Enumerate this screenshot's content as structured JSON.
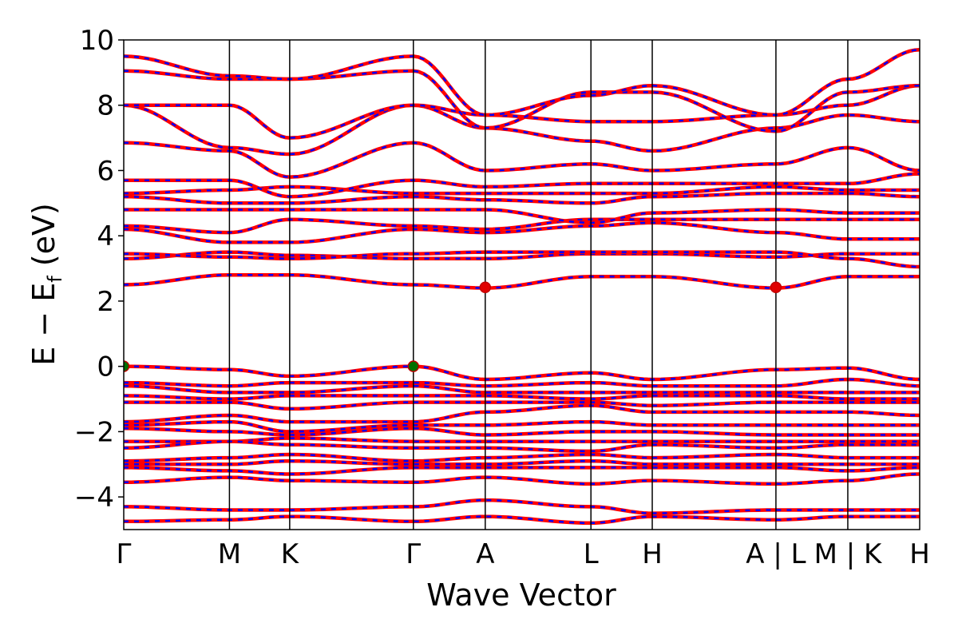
{
  "chart_data": {
    "type": "line",
    "title": "",
    "xlabel": "Wave Vector",
    "ylabel_main": "E − E",
    "ylabel_sub": "f",
    "ylabel_unit": " (eV)",
    "ylim": [
      -5,
      10
    ],
    "yticks": [
      {
        "value": 10,
        "label": "10"
      },
      {
        "value": 8,
        "label": "8"
      },
      {
        "value": 6,
        "label": "6"
      },
      {
        "value": 4,
        "label": "4"
      },
      {
        "value": 2,
        "label": "2"
      },
      {
        "value": 0,
        "label": "0"
      },
      {
        "value": -2,
        "label": "−2"
      },
      {
        "value": -4,
        "label": "−4"
      }
    ],
    "path_length": 7.53,
    "kpoints": [
      {
        "label": "Γ",
        "x": 0.0
      },
      {
        "label": "M",
        "x": 1.0
      },
      {
        "label": "K",
        "x": 1.57
      },
      {
        "label": "Γ",
        "x": 2.74
      },
      {
        "label": "A",
        "x": 3.42
      },
      {
        "label": "L",
        "x": 4.42
      },
      {
        "label": "H",
        "x": 5.0
      },
      {
        "label": "A | L",
        "x": 6.17
      },
      {
        "label": "M | K",
        "x": 6.85
      },
      {
        "label": "H",
        "x": 7.53
      }
    ],
    "series_colors": {
      "red": "#ff0000",
      "blue": "#0000ff"
    },
    "conduction_bands": [
      [
        2.5,
        2.8,
        2.8,
        2.5,
        2.4,
        2.75,
        2.75,
        2.4,
        2.75,
        2.75
      ],
      [
        3.3,
        3.5,
        3.4,
        3.3,
        3.3,
        3.45,
        3.45,
        3.35,
        3.45,
        3.45
      ],
      [
        3.45,
        3.35,
        3.3,
        3.45,
        3.5,
        3.5,
        3.5,
        3.5,
        3.3,
        3.05
      ],
      [
        4.2,
        3.8,
        3.8,
        4.2,
        4.1,
        4.3,
        4.4,
        4.1,
        3.9,
        3.9
      ],
      [
        4.3,
        4.1,
        4.5,
        4.3,
        4.2,
        4.5,
        4.5,
        4.5,
        4.5,
        4.5
      ],
      [
        4.8,
        4.8,
        4.8,
        4.8,
        4.8,
        4.4,
        4.7,
        4.8,
        4.7,
        4.7
      ],
      [
        5.2,
        5.0,
        5.0,
        5.2,
        5.1,
        5.0,
        5.2,
        5.3,
        5.3,
        5.2
      ],
      [
        5.3,
        5.4,
        5.5,
        5.3,
        5.3,
        5.3,
        5.3,
        5.5,
        5.4,
        5.4
      ],
      [
        5.7,
        5.7,
        5.2,
        5.7,
        5.5,
        5.6,
        5.6,
        5.6,
        5.6,
        5.9
      ],
      [
        6.85,
        6.6,
        5.8,
        6.85,
        6.0,
        6.2,
        6.0,
        6.2,
        6.7,
        6.0
      ],
      [
        8.0,
        6.7,
        6.5,
        8.0,
        7.3,
        6.9,
        6.6,
        7.3,
        7.7,
        7.5
      ],
      [
        8.0,
        8.0,
        7.0,
        8.0,
        7.7,
        7.5,
        7.5,
        7.7,
        8.0,
        8.6
      ],
      [
        9.05,
        8.8,
        8.8,
        9.05,
        7.3,
        8.4,
        8.4,
        7.2,
        8.4,
        8.6
      ],
      [
        9.5,
        8.9,
        8.8,
        9.5,
        7.7,
        8.3,
        8.6,
        7.7,
        8.8,
        9.7
      ]
    ],
    "valence_bands": [
      [
        0.0,
        -0.1,
        -0.3,
        0.0,
        -0.4,
        -0.2,
        -0.4,
        -0.1,
        -0.05,
        -0.4
      ],
      [
        -0.5,
        -0.6,
        -0.5,
        -0.5,
        -0.6,
        -0.5,
        -0.6,
        -0.6,
        -0.4,
        -0.6
      ],
      [
        -0.6,
        -0.8,
        -0.8,
        -0.6,
        -0.8,
        -0.8,
        -0.8,
        -0.8,
        -0.8,
        -0.8
      ],
      [
        -0.9,
        -1.0,
        -0.9,
        -0.9,
        -0.9,
        -1.0,
        -0.9,
        -0.9,
        -1.0,
        -1.0
      ],
      [
        -1.1,
        -1.1,
        -1.3,
        -1.1,
        -1.1,
        -1.1,
        -1.2,
        -1.1,
        -1.1,
        -1.1
      ],
      [
        -1.7,
        -1.5,
        -1.7,
        -1.7,
        -1.4,
        -1.2,
        -1.4,
        -1.4,
        -1.4,
        -1.5
      ],
      [
        -1.8,
        -1.7,
        -2.0,
        -1.8,
        -1.8,
        -1.7,
        -1.8,
        -1.8,
        -1.8,
        -1.8
      ],
      [
        -1.9,
        -2.0,
        -2.1,
        -1.9,
        -2.1,
        -2.0,
        -2.0,
        -2.1,
        -2.1,
        -2.1
      ],
      [
        -2.3,
        -2.3,
        -2.2,
        -2.3,
        -2.3,
        -2.3,
        -2.3,
        -2.3,
        -2.3,
        -2.3
      ],
      [
        -2.5,
        -2.3,
        -2.4,
        -2.5,
        -2.5,
        -2.6,
        -2.4,
        -2.5,
        -2.4,
        -2.4
      ],
      [
        -2.9,
        -2.8,
        -2.7,
        -2.9,
        -2.8,
        -2.7,
        -2.8,
        -2.7,
        -2.8,
        -2.8
      ],
      [
        -3.0,
        -3.0,
        -2.9,
        -3.0,
        -3.0,
        -2.9,
        -3.0,
        -3.0,
        -3.0,
        -3.0
      ],
      [
        -3.1,
        -3.2,
        -3.3,
        -3.1,
        -3.1,
        -3.1,
        -3.1,
        -3.1,
        -3.2,
        -3.1
      ],
      [
        -3.55,
        -3.4,
        -3.5,
        -3.55,
        -3.4,
        -3.6,
        -3.5,
        -3.6,
        -3.5,
        -3.3
      ],
      [
        -4.3,
        -4.4,
        -4.4,
        -4.3,
        -4.1,
        -4.3,
        -4.5,
        -4.4,
        -4.4,
        -4.4
      ],
      [
        -4.75,
        -4.7,
        -4.6,
        -4.75,
        -4.6,
        -4.8,
        -4.6,
        -4.7,
        -4.6,
        -4.6
      ]
    ],
    "markers": [
      {
        "x": 0.0,
        "y": 0.0,
        "color": "#007000"
      },
      {
        "x": 2.74,
        "y": 0.0,
        "color": "#007000"
      },
      {
        "x": 3.42,
        "y": 2.42,
        "color": "#e00000"
      },
      {
        "x": 6.17,
        "y": 2.42,
        "color": "#e00000"
      }
    ]
  }
}
